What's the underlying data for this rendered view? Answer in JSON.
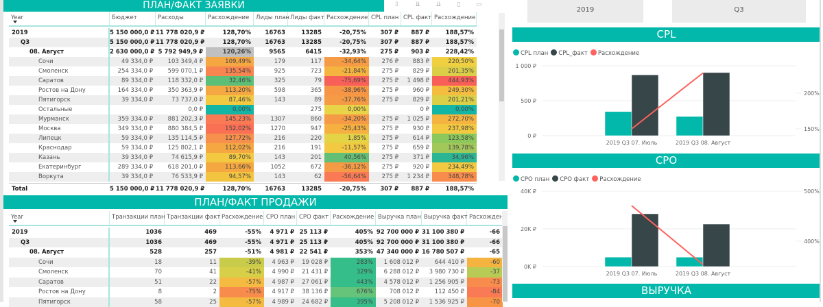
{
  "leads_table": {
    "title": "ПЛАН/ФАКТ ЗАЯВКИ",
    "headers": [
      "Year",
      "Бюджет",
      "Расходы",
      "Расхождение",
      "Лиды план",
      "Лиды факт",
      "Расхождение",
      "CPL план",
      "CPL факт",
      "Расхождение"
    ],
    "rows": [
      {
        "level": 0,
        "bold": true,
        "cells": [
          "2019",
          "5 150 000,0 ₽",
          "11 778 020,9 ₽",
          "128,70%",
          "16763",
          "13285",
          "-20,75%",
          "307 ₽",
          "887 ₽",
          "188,57%"
        ],
        "colors": []
      },
      {
        "level": 1,
        "bold": true,
        "cells": [
          "Q3",
          "5 150 000,0 ₽",
          "11 778 020,9 ₽",
          "128,70%",
          "16763",
          "13285",
          "-20,75%",
          "307 ₽",
          "887 ₽",
          "188,57%"
        ],
        "colors": []
      },
      {
        "level": 2,
        "bold": true,
        "cells": [
          "08. Август",
          "2 630 000,0 ₽",
          "5 792 949,9 ₽",
          "120,26%",
          "9565",
          "6415",
          "-32,93%",
          "275 ₽",
          "903 ₽",
          "228,42%"
        ],
        "colors": {
          "3": "#c0c0c0"
        }
      },
      {
        "level": 3,
        "cells": [
          "Сочи",
          "49 334,0 ₽",
          "103 349,4 ₽",
          "109,49%",
          "179",
          "117",
          "-34,64%",
          "276 ₽",
          "883 ₽",
          "220,50%"
        ],
        "colors": {
          "3": "#f5a742",
          "6": "#f59a45",
          "9": "#f0cf40"
        }
      },
      {
        "level": 3,
        "cells": [
          "Смоленск",
          "254 334,0 ₽",
          "599 070,1 ₽",
          "135,54%",
          "925",
          "723",
          "-21,84%",
          "275 ₽",
          "829 ₽",
          "201,35%"
        ],
        "colors": {
          "3": "#f8844f",
          "6": "#f5b440",
          "9": "#dbcf48"
        }
      },
      {
        "level": 3,
        "cells": [
          "Саратов",
          "89 334,0 ₽",
          "118 332,0 ₽",
          "32,46%",
          "325",
          "79",
          "-75,69%",
          "275 ₽",
          "1 498 ₽",
          "444,93%"
        ],
        "colors": {
          "3": "#5cbf78",
          "6": "#f85f58",
          "9": "#f85f58"
        }
      },
      {
        "level": 3,
        "cells": [
          "Ростов на Дону",
          "164 334,0 ₽",
          "350 363,9 ₽",
          "113,20%",
          "598",
          "365",
          "-38,96%",
          "275 ₽",
          "960 ₽",
          "249,30%"
        ],
        "colors": {
          "3": "#f5a742",
          "6": "#f59545",
          "9": "#f5bd40"
        }
      },
      {
        "level": 3,
        "cells": [
          "Пятигорск",
          "39 334,0 ₽",
          "73 737,0 ₽",
          "87,46%",
          "143",
          "89",
          "-37,76%",
          "275 ₽",
          "829 ₽",
          "201,21%"
        ],
        "colors": {
          "3": "#f2c940",
          "6": "#f59a45",
          "9": "#dbcf48"
        }
      },
      {
        "level": 3,
        "cells": [
          "Остальные",
          "",
          "0,0 ₽",
          "0,00%",
          "",
          "275",
          "0,00%",
          "",
          "0 ₽",
          "0,00%"
        ],
        "colors": {
          "3": "#13b5a5",
          "6": "#e9d347",
          "9": "#13b5a5"
        }
      },
      {
        "level": 3,
        "cells": [
          "Мурманск",
          "359 334,0 ₽",
          "881 202,3 ₽",
          "145,23%",
          "1307",
          "860",
          "-34,20%",
          "275 ₽",
          "1 025 ₽",
          "272,70%"
        ],
        "colors": {
          "3": "#fa7a55",
          "6": "#f59a45",
          "9": "#f5b440"
        }
      },
      {
        "level": 3,
        "cells": [
          "Москва",
          "349 334,0 ₽",
          "880 384,5 ₽",
          "152,02%",
          "1270",
          "947",
          "-25,43%",
          "275 ₽",
          "930 ₽",
          "237,98%"
        ],
        "colors": {
          "3": "#fa7055",
          "6": "#f5b040",
          "9": "#f2c940"
        }
      },
      {
        "level": 3,
        "cells": [
          "Липецк",
          "59 334,0 ₽",
          "135 114,5 ₽",
          "127,72%",
          "216",
          "220",
          "1,85%",
          "275 ₽",
          "614 ₽",
          "123,58%"
        ],
        "colors": {
          "3": "#f7904c",
          "6": "#e3d345",
          "9": "#8cc85c"
        }
      },
      {
        "level": 3,
        "cells": [
          "Краснодар",
          "59 334,0 ₽",
          "125 802,1 ₽",
          "112,02%",
          "216",
          "191",
          "-11,57%",
          "275 ₽",
          "659 ₽",
          "139,78%"
        ],
        "colors": {
          "3": "#f5a742",
          "6": "#f2c940",
          "9": "#a3c85a"
        }
      },
      {
        "level": 3,
        "cells": [
          "Казань",
          "39 334,0 ₽",
          "74 615,9 ₽",
          "89,70%",
          "143",
          "201",
          "40,56%",
          "275 ₽",
          "371 ₽",
          "34,96%"
        ],
        "colors": {
          "3": "#f2c940",
          "6": "#62bf75",
          "9": "#2cb595"
        }
      },
      {
        "level": 3,
        "cells": [
          "Екатеринбург",
          "289 334,0 ₽",
          "618 201,0 ₽",
          "113,66%",
          "1052",
          "672",
          "-36,12%",
          "275 ₽",
          "920 ₽",
          "234,49%"
        ],
        "colors": {
          "3": "#f5a742",
          "6": "#f59a45",
          "9": "#f2c940"
        }
      },
      {
        "level": 3,
        "cells": [
          "Воркута",
          "39 334,0 ₽",
          "76 533,9 ₽",
          "94,57%",
          "143",
          "62",
          "-56,64%",
          "275 ₽",
          "1 234 ₽",
          "348,78%"
        ],
        "colors": {
          "3": "#f2c440",
          "6": "#fa7a55",
          "9": "#f88c4c"
        }
      }
    ],
    "total": [
      "Total",
      "5 150 000,0 ₽",
      "11 778 020,9 ₽",
      "128,70%",
      "16763",
      "13285",
      "-20,75%",
      "307 ₽",
      "887 ₽",
      "188,57%"
    ]
  },
  "sales_table": {
    "title": "ПЛАН/ФАКТ ПРОДАЖИ",
    "headers": [
      "Year",
      "Транзакции план",
      "Транзакции факт",
      "Расхождение",
      "CPO план",
      "CPO факт",
      "Расхождение",
      "Выручка план",
      "Выручка факт",
      "Расхождение"
    ],
    "rows": [
      {
        "level": 0,
        "bold": true,
        "cells": [
          "2019",
          "1036",
          "469",
          "-55%",
          "4 971 ₽",
          "25 113 ₽",
          "405%",
          "92 700 000 ₽",
          "31 100 380 ₽",
          "-66"
        ],
        "colors": []
      },
      {
        "level": 1,
        "bold": true,
        "cells": [
          "Q3",
          "1036",
          "469",
          "-55%",
          "4 971 ₽",
          "25 113 ₽",
          "405%",
          "92 700 000 ₽",
          "31 100 380 ₽",
          "-66"
        ],
        "colors": []
      },
      {
        "level": 2,
        "bold": true,
        "cells": [
          "08. Август",
          "528",
          "257",
          "-51%",
          "4 981 ₽",
          "22 541 ₽",
          "353%",
          "47 340 000 ₽",
          "16 780 507 ₽",
          "-65"
        ],
        "colors": []
      },
      {
        "level": 3,
        "cells": [
          "Сочи",
          "18",
          "11",
          "-39%",
          "4 963 ₽",
          "19 028 ₽",
          "283%",
          "1 608 012 ₽",
          "644 410 ₽",
          "-60"
        ],
        "colors": {
          "3": "#c9cc4a",
          "6": "#35be8a",
          "9": "#f5b440"
        }
      },
      {
        "level": 3,
        "cells": [
          "Смоленск",
          "70",
          "41",
          "-41%",
          "4 990 ₽",
          "21 431 ₽",
          "329%",
          "6 288 012 ₽",
          "3 980 730 ₽",
          "-37"
        ],
        "colors": {
          "3": "#d6cf47",
          "6": "#35be8a",
          "9": "#b8cc55"
        }
      },
      {
        "level": 3,
        "cells": [
          "Саратов",
          "51",
          "22",
          "-57%",
          "4 987 ₽",
          "27 061 ₽",
          "443%",
          "4 578 012 ₽",
          "1 256 905 ₽",
          "-73"
        ],
        "colors": {
          "3": "#f5bb40",
          "6": "#35be8a",
          "9": "#f88c4c"
        }
      },
      {
        "level": 3,
        "cells": [
          "Ростов на Дону",
          "8",
          "2",
          "-75%",
          "4 917 ₽",
          "38 136 ₽",
          "676%",
          "708 012 ₽",
          "112 450 ₽",
          "-84"
        ],
        "colors": {
          "3": "#f88c4c",
          "6": "#66c37a",
          "9": "#fa7a55"
        }
      },
      {
        "level": 3,
        "cells": [
          "Пятигорск",
          "58",
          "25",
          "-57%",
          "4 989 ₽",
          "24 682 ₽",
          "395%",
          "5 208 012 ₽",
          "1 536 925 ₽",
          "-70"
        ],
        "colors": {
          "3": "#f5bb40",
          "6": "#35be8a",
          "9": "#f89445"
        }
      }
    ]
  },
  "slicers": {
    "year": "2019",
    "quarter": "Q3"
  },
  "chart_data": [
    {
      "type": "bar+line",
      "title": "CPL",
      "categories": [
        "2019 Q3 07. Июль",
        "2019 Q3 08. Август"
      ],
      "series": [
        {
          "name": "CPL план",
          "values": [
            345,
            275
          ],
          "color": "#01b8aa",
          "axis": "left"
        },
        {
          "name": "CPL_факт",
          "values": [
            870,
            903
          ],
          "color": "#374649",
          "axis": "left"
        },
        {
          "name": "Расхождение",
          "values": [
            150,
            228.42
          ],
          "color": "#fd625e",
          "axis": "right",
          "kind": "line"
        }
      ],
      "left_ticks": [
        "0 ₽",
        "500 ₽",
        "1 000 ₽"
      ],
      "left_tick_values": [
        0,
        500,
        1000
      ],
      "ylim": [
        0,
        1000
      ],
      "right_ticks": [
        "150%",
        "200%"
      ],
      "right_tick_values": [
        150,
        200
      ],
      "y2lim": [
        140.4,
        238.5
      ]
    },
    {
      "type": "bar+line",
      "title": "CPO",
      "categories": [
        "2019 Q3 07. Июль",
        "2019 Q3 08. Август"
      ],
      "series": [
        {
          "name": "CPO план",
          "values": [
            5000,
            4981
          ],
          "color": "#01b8aa",
          "axis": "left"
        },
        {
          "name": "CPO факт",
          "values": [
            28000,
            22541
          ],
          "color": "#374649",
          "axis": "left"
        },
        {
          "name": "Расхождение",
          "values": [
            471,
            353
          ],
          "color": "#fd625e",
          "axis": "right",
          "kind": "line"
        }
      ],
      "left_ticks": [
        "0K ₽",
        "20K ₽",
        "40K ₽"
      ],
      "left_tick_values": [
        0,
        20000,
        40000
      ],
      "ylim": [
        0,
        40000
      ],
      "right_ticks": [
        "400%",
        "500%"
      ],
      "right_tick_values": [
        400,
        500
      ],
      "y2lim": [
        349,
        500
      ]
    }
  ],
  "revenue_title": "ВЫРУЧКА"
}
